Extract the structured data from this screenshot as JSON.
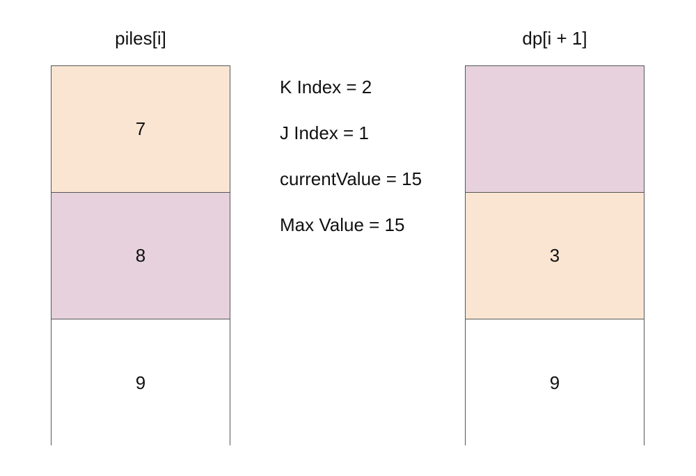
{
  "left": {
    "title": "piles[i]",
    "cells": [
      {
        "value": "7",
        "color": "#fae5d3"
      },
      {
        "value": "8",
        "color": "#e6d1dc"
      },
      {
        "value": "9",
        "color": "#ffffff"
      }
    ]
  },
  "right": {
    "title": "dp[i + 1]",
    "cells": [
      {
        "value": "",
        "color": "#e6d1dc"
      },
      {
        "value": "3",
        "color": "#fae5d3"
      },
      {
        "value": "9",
        "color": "#ffffff"
      }
    ]
  },
  "info": [
    "K Index = 2",
    "J Index = 1",
    "currentValue = 15",
    "Max Value = 15"
  ]
}
